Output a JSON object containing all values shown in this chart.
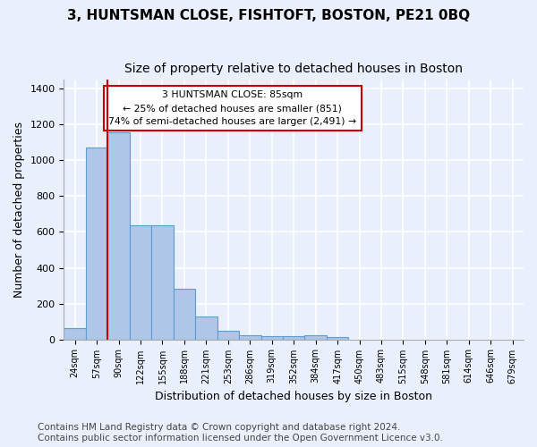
{
  "title": "3, HUNTSMAN CLOSE, FISHTOFT, BOSTON, PE21 0BQ",
  "subtitle": "Size of property relative to detached houses in Boston",
  "xlabel": "Distribution of detached houses by size in Boston",
  "ylabel": "Number of detached properties",
  "categories": [
    "24sqm",
    "57sqm",
    "90sqm",
    "122sqm",
    "155sqm",
    "188sqm",
    "221sqm",
    "253sqm",
    "286sqm",
    "319sqm",
    "352sqm",
    "384sqm",
    "417sqm",
    "450sqm",
    "483sqm",
    "515sqm",
    "548sqm",
    "581sqm",
    "614sqm",
    "646sqm",
    "679sqm"
  ],
  "values": [
    65,
    1070,
    1155,
    635,
    635,
    285,
    130,
    48,
    22,
    18,
    20,
    22,
    12,
    0,
    0,
    0,
    0,
    0,
    0,
    0,
    0
  ],
  "bar_color": "#aec6e8",
  "bar_edge_color": "#5a9fd4",
  "vline_color": "#cc0000",
  "vline_x_index": 1.5,
  "annotation_text": "3 HUNTSMAN CLOSE: 85sqm\n← 25% of detached houses are smaller (851)\n74% of semi-detached houses are larger (2,491) →",
  "annotation_box_color": "#ffffff",
  "annotation_box_edge": "#cc0000",
  "ylim": [
    0,
    1450
  ],
  "yticks": [
    0,
    200,
    400,
    600,
    800,
    1000,
    1200,
    1400
  ],
  "background_color": "#eaf0fb",
  "grid_color": "#ffffff",
  "footer": "Contains HM Land Registry data © Crown copyright and database right 2024.\nContains public sector information licensed under the Open Government Licence v3.0.",
  "title_fontsize": 11,
  "subtitle_fontsize": 10,
  "xlabel_fontsize": 9,
  "ylabel_fontsize": 9,
  "footer_fontsize": 7.5
}
